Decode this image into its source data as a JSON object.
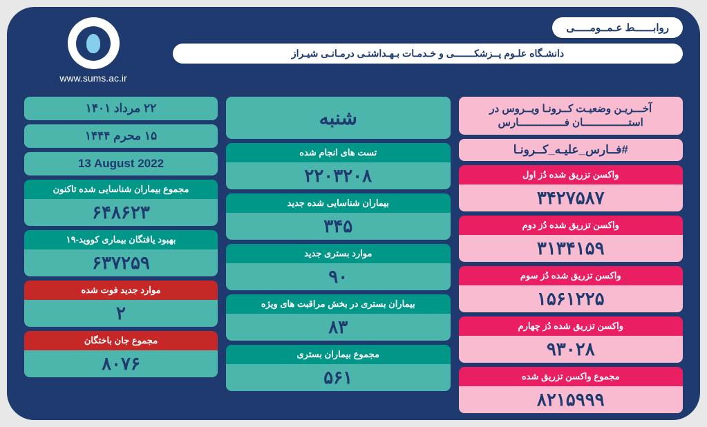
{
  "header": {
    "pr": "روابــــــط عـمــومـــــی",
    "university": "دانشـگاه علـوم  پــزشکـــــــی و خـدمـات بـهـداشتـی درمـانـی شیـراز",
    "url": "www.sums.ac.ir"
  },
  "rightCol": {
    "title": "آخـــریـن وضعیـت کــرونـا ویــروس در استـــــــــــــــان فـــــــــــــــارس",
    "hashtag": "#فــارس_علیـه_کــرونـا",
    "dose1_label": "واکسن تزریق شده دُز اول",
    "dose1_value": "۳۴۲۷۵۸۷",
    "dose2_label": "واکسن تزریق شده دُز دوم",
    "dose2_value": "۳۱۳۴۱۵۹",
    "dose3_label": "واکسن تزریق شده دُز سوم",
    "dose3_value": "۱۵۶۱۲۲۵",
    "dose4_label": "واکسن تزریق شده دُز چهارم",
    "dose4_value": "۹۳۰۲۸",
    "total_label": "مجموع واکسن تزریق شده",
    "total_value": "۸۲۱۵۹۹۹"
  },
  "midCol": {
    "day": "شنبه",
    "tests_label": "تست های انجام شده",
    "tests_value": "۲۲۰۳۲۰۸",
    "new_cases_label": "بیماران شناسایی شده جدید",
    "new_cases_value": "۳۴۵",
    "new_hosp_label": "موارد بستری جدید",
    "new_hosp_value": "۹۰",
    "icu_label": "بیماران بستری در بخش مراقبت های ویژه",
    "icu_value": "۸۳",
    "total_hosp_label": "مجموع بیماران بستری",
    "total_hosp_value": "۵۶۱"
  },
  "leftCol": {
    "date_fa": "۲۲ مرداد ۱۴۰۱",
    "date_ar": "۱۵ محرم   ۱۴۴۴",
    "date_en": "13  August 2022",
    "total_cases_label": "مجموع بیماران شناسایی شده تاکنون",
    "total_cases_value": "۶۴۸۶۲۳",
    "recovered_label": "بهبود یافتگان بیماری کووید-۱۹",
    "recovered_value": "۶۳۷۲۵۹",
    "new_deaths_label": "موارد جدید فوت شده",
    "new_deaths_value": "۲",
    "total_deaths_label": "مجموع جان باختگان",
    "total_deaths_value": "۸۰۷۶"
  },
  "colors": {
    "navy": "#1e3a6e",
    "pink": "#e91e63",
    "pink_light": "#f8bbd0",
    "teal": "#009688",
    "teal_light": "#4db6ac",
    "red": "#c62828",
    "white": "#ffffff"
  }
}
